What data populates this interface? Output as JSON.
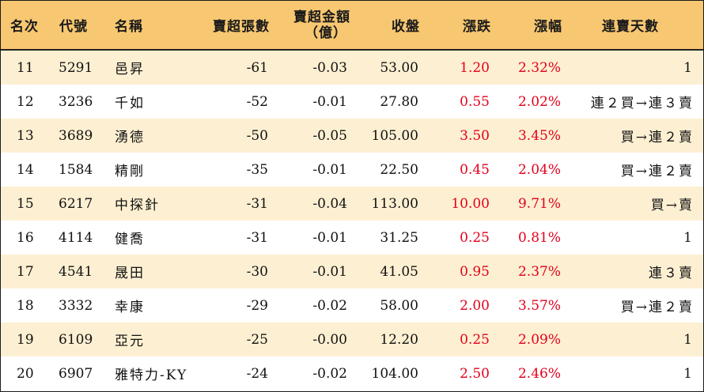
{
  "headers": {
    "rank": "名次",
    "code": "代號",
    "name": "名稱",
    "net_sell_shares": "賣超張數",
    "net_sell_amount_line1": "賣超金額",
    "net_sell_amount_line2": "（億）",
    "close": "收盤",
    "change": "漲跌",
    "change_pct": "漲幅",
    "consecutive_days": "連賣天數"
  },
  "rows": [
    {
      "rank": "11",
      "code": "5291",
      "name": "邑昇",
      "shares": "-61",
      "amount": "-0.03",
      "close": "53.00",
      "change": "1.20",
      "pct": "2.32%",
      "days": "1"
    },
    {
      "rank": "12",
      "code": "3236",
      "name": "千如",
      "shares": "-52",
      "amount": "-0.01",
      "close": "27.80",
      "change": "0.55",
      "pct": "2.02%",
      "days": "連２買→連３賣"
    },
    {
      "rank": "13",
      "code": "3689",
      "name": "湧德",
      "shares": "-50",
      "amount": "-0.05",
      "close": "105.00",
      "change": "3.50",
      "pct": "3.45%",
      "days": "買→連２賣"
    },
    {
      "rank": "14",
      "code": "1584",
      "name": "精剛",
      "shares": "-35",
      "amount": "-0.01",
      "close": "22.50",
      "change": "0.45",
      "pct": "2.04%",
      "days": "買→連２賣"
    },
    {
      "rank": "15",
      "code": "6217",
      "name": "中探針",
      "shares": "-31",
      "amount": "-0.04",
      "close": "113.00",
      "change": "10.00",
      "pct": "9.71%",
      "days": "買→賣"
    },
    {
      "rank": "16",
      "code": "4114",
      "name": "健喬",
      "shares": "-31",
      "amount": "-0.01",
      "close": "31.25",
      "change": "0.25",
      "pct": "0.81%",
      "days": "1"
    },
    {
      "rank": "17",
      "code": "4541",
      "name": "晟田",
      "shares": "-30",
      "amount": "-0.01",
      "close": "41.05",
      "change": "0.95",
      "pct": "2.37%",
      "days": "連３賣"
    },
    {
      "rank": "18",
      "code": "3332",
      "name": "幸康",
      "shares": "-29",
      "amount": "-0.02",
      "close": "58.00",
      "change": "2.00",
      "pct": "3.57%",
      "days": "買→連２賣"
    },
    {
      "rank": "19",
      "code": "6109",
      "name": "亞元",
      "shares": "-25",
      "amount": "-0.00",
      "close": "12.20",
      "change": "0.25",
      "pct": "2.09%",
      "days": "1"
    },
    {
      "rank": "20",
      "code": "6907",
      "name": "雅特力-KY",
      "shares": "-24",
      "amount": "-0.02",
      "close": "104.00",
      "change": "2.50",
      "pct": "2.46%",
      "days": "1"
    }
  ],
  "colors": {
    "header_bg": "#f7c771",
    "alt_row_bg": "#fdf0d2",
    "up_red": "#e3001b",
    "text": "#111111"
  }
}
